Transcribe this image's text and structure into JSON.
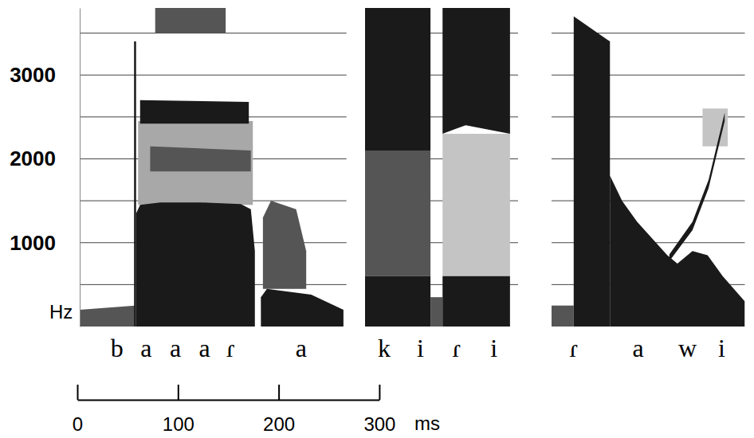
{
  "chart_data": {
    "type": "spectrogram",
    "y_label": "Hz",
    "x_label": "ms",
    "ylim": [
      0,
      3800
    ],
    "yticks": [
      1000,
      2000,
      3000
    ],
    "grid_lines": [
      500,
      1000,
      1500,
      2000,
      2500,
      3000,
      3500
    ],
    "xlim": [
      0,
      300
    ],
    "xticks": [
      0,
      100,
      200,
      300
    ],
    "panels": [
      {
        "xlim": [
          0,
          265
        ],
        "segments": [
          {
            "label": "b",
            "t": 37
          },
          {
            "label": "a",
            "t": 66
          },
          {
            "label": "a",
            "t": 95
          },
          {
            "label": "a",
            "t": 124
          },
          {
            "label": "ɾ",
            "t": 150
          },
          {
            "label": "a",
            "t": 220
          }
        ],
        "regions": [
          {
            "t": [
              0,
              55
            ],
            "low": [
              0,
              0
            ],
            "high": [
              200,
              250
            ],
            "color": "#555555"
          },
          {
            "t": [
              58,
              172
            ],
            "low": [
              1450,
              1450
            ],
            "high": [
              2450,
              2450
            ],
            "color": "#a8a8a8"
          },
          {
            "t": [
              70,
              170
            ],
            "low": [
              1850,
              1850
            ],
            "high": [
              2150,
              2100
            ],
            "color": "#555555"
          },
          {
            "t": [
              60,
              168
            ],
            "low": [
              2420,
              2420
            ],
            "high": [
              2700,
              2680
            ],
            "color": "#1a1a1a"
          },
          {
            "t": [
              75,
              145
            ],
            "low": [
              3500,
              3500
            ],
            "high": [
              3800,
              3800
            ],
            "color": "#555555"
          },
          {
            "t": [
              56,
              60,
              80,
              120,
              160,
              170,
              174
            ],
            "low": [
              0,
              0,
              0,
              0,
              0,
              0,
              0
            ],
            "high": [
              1350,
              1450,
              1480,
              1480,
              1460,
              1400,
              900
            ],
            "color": "#1a1a1a"
          },
          {
            "t": [
              54,
              56
            ],
            "low": [
              0,
              0
            ],
            "high": [
              3400,
              3400
            ],
            "color": "#1a1a1a"
          },
          {
            "t": [
              182,
              190,
              215,
              225
            ],
            "low": [
              450,
              450,
              450,
              450
            ],
            "high": [
              1300,
              1500,
              1400,
              900
            ],
            "color": "#555555"
          },
          {
            "t": [
              180,
              186,
              230,
              262
            ],
            "low": [
              0,
              0,
              0,
              0
            ],
            "high": [
              350,
              450,
              380,
              200
            ],
            "color": "#1a1a1a"
          }
        ]
      },
      {
        "xlim": [
          0,
          152
        ],
        "segments": [
          {
            "label": "k",
            "t": 19
          },
          {
            "label": "i",
            "t": 55
          },
          {
            "label": "ɾ",
            "t": 91
          },
          {
            "label": "i",
            "t": 128
          }
        ],
        "regions": [
          {
            "t": [
              0,
              65
            ],
            "low": [
              2100,
              2100
            ],
            "high": [
              3800,
              3800
            ],
            "color": "#1a1a1a"
          },
          {
            "t": [
              0,
              65
            ],
            "low": [
              600,
              600
            ],
            "high": [
              2100,
              2100
            ],
            "color": "#555555"
          },
          {
            "t": [
              0,
              65
            ],
            "low": [
              0,
              0
            ],
            "high": [
              600,
              600
            ],
            "color": "#1a1a1a"
          },
          {
            "t": [
              65,
              77
            ],
            "low": [
              0,
              0
            ],
            "high": [
              350,
              350
            ],
            "color": "#555555"
          },
          {
            "t": [
              77,
              88,
              100,
              144
            ],
            "low": [
              2300,
              2350,
              2400,
              2300
            ],
            "high": [
              3800,
              3800,
              3800,
              3800
            ],
            "color": "#1a1a1a"
          },
          {
            "t": [
              77,
              144
            ],
            "low": [
              600,
              600
            ],
            "high": [
              2300,
              2300
            ],
            "color": "#c4c4c4"
          },
          {
            "t": [
              77,
              144
            ],
            "low": [
              0,
              0
            ],
            "high": [
              600,
              600
            ],
            "color": "#1a1a1a"
          }
        ]
      },
      {
        "xlim": [
          0,
          192
        ],
        "segments": [
          {
            "label": "ɾ",
            "t": 22
          },
          {
            "label": "a",
            "t": 86
          },
          {
            "label": "w",
            "t": 135
          },
          {
            "label": "i",
            "t": 169
          }
        ],
        "regions": [
          {
            "t": [
              0,
              22
            ],
            "low": [
              0,
              0
            ],
            "high": [
              250,
              250
            ],
            "color": "#555555"
          },
          {
            "t": [
              150,
              175
            ],
            "low": [
              2150,
              2150
            ],
            "high": [
              2600,
              2600
            ],
            "color": "#c4c4c4"
          },
          {
            "t": [
              22,
              58
            ],
            "low": [
              0,
              0
            ],
            "high": [
              3700,
              3400
            ],
            "color": "#1a1a1a"
          },
          {
            "t": [
              58,
              70,
              85,
              100,
              115,
              125,
              140,
              155,
              170,
              192
            ],
            "low": [
              0,
              0,
              0,
              0,
              0,
              0,
              0,
              0,
              0,
              0
            ],
            "high": [
              1800,
              1500,
              1250,
              1050,
              850,
              750,
              900,
              850,
              600,
              300
            ],
            "color": "#1a1a1a"
          },
          {
            "t": [
              117,
              140,
              156,
              172
            ],
            "low": [
              780,
              1150,
              1650,
              2450
            ],
            "high": [
              860,
              1250,
              1750,
              2550
            ],
            "color": "#1a1a1a"
          }
        ]
      }
    ]
  }
}
